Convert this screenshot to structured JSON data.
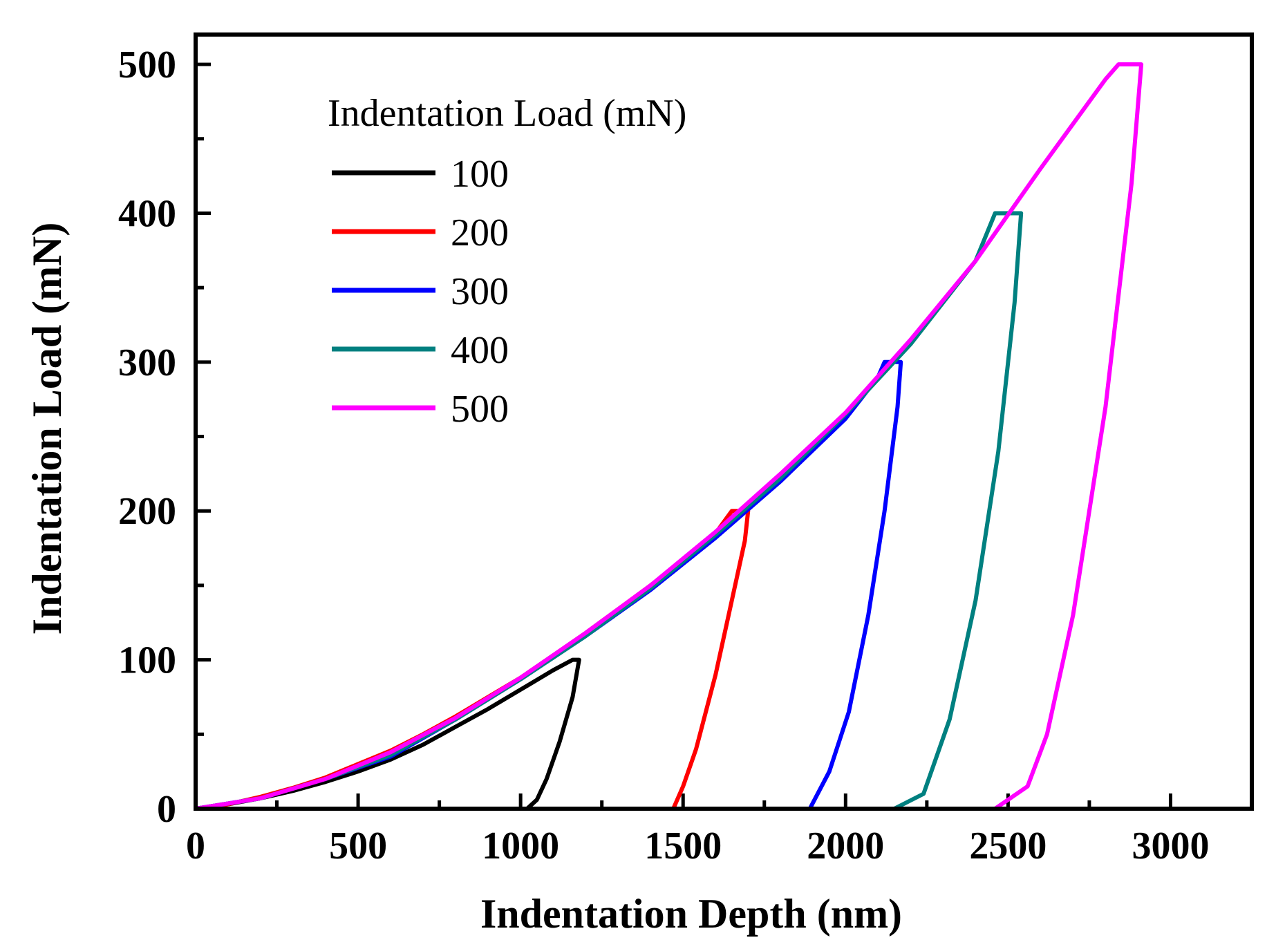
{
  "chart_data": {
    "type": "line",
    "xlabel": "Indentation Depth (nm)",
    "ylabel": "Indentation Load (mN)",
    "xlim": [
      0,
      3250
    ],
    "ylim": [
      0,
      520
    ],
    "xticks": [
      0,
      500,
      1000,
      1500,
      2000,
      2500,
      3000
    ],
    "yticks": [
      0,
      100,
      200,
      300,
      400,
      500
    ],
    "grid": false,
    "legend": {
      "title": "Indentation Load (mN)",
      "placement": "top-left"
    },
    "series": [
      {
        "name": "100",
        "color": "#000000",
        "x": [
          0,
          100,
          200,
          300,
          400,
          500,
          600,
          700,
          800,
          900,
          1000,
          1100,
          1160,
          1180,
          1160,
          1120,
          1080,
          1050,
          1020
        ],
        "y": [
          0,
          3,
          7,
          12,
          18,
          25,
          33,
          43,
          55,
          67,
          80,
          93,
          100,
          100,
          75,
          45,
          20,
          6,
          0
        ]
      },
      {
        "name": "200",
        "color": "#ff0000",
        "x": [
          0,
          100,
          200,
          300,
          400,
          500,
          600,
          700,
          800,
          900,
          1000,
          1100,
          1200,
          1300,
          1400,
          1500,
          1600,
          1650,
          1700,
          1690,
          1650,
          1600,
          1540,
          1500,
          1470
        ],
        "y": [
          0,
          3,
          8,
          14,
          21,
          30,
          39,
          50,
          62,
          75,
          88,
          103,
          118,
          134,
          150,
          167,
          185,
          200,
          200,
          180,
          140,
          90,
          40,
          15,
          0
        ]
      },
      {
        "name": "300",
        "color": "#0000ff",
        "x": [
          0,
          200,
          400,
          600,
          800,
          1000,
          1200,
          1400,
          1600,
          1800,
          2000,
          2100,
          2120,
          2170,
          2160,
          2120,
          2070,
          2010,
          1950,
          1890
        ],
        "y": [
          0,
          7,
          20,
          35,
          60,
          87,
          116,
          147,
          182,
          220,
          262,
          290,
          300,
          300,
          270,
          200,
          130,
          65,
          25,
          0
        ]
      },
      {
        "name": "400",
        "color": "#008080",
        "x": [
          0,
          200,
          400,
          600,
          800,
          1000,
          1200,
          1400,
          1600,
          1800,
          2000,
          2200,
          2400,
          2460,
          2540,
          2520,
          2470,
          2400,
          2320,
          2240,
          2150
        ],
        "y": [
          0,
          7,
          20,
          36,
          60,
          87,
          116,
          148,
          184,
          222,
          265,
          312,
          368,
          400,
          400,
          340,
          240,
          140,
          60,
          10,
          0
        ]
      },
      {
        "name": "500",
        "color": "#ff00ff",
        "x": [
          0,
          200,
          400,
          600,
          800,
          1000,
          1200,
          1400,
          1600,
          1800,
          2000,
          2200,
          2400,
          2600,
          2800,
          2840,
          2910,
          2880,
          2800,
          2700,
          2620,
          2560,
          2460
        ],
        "y": [
          0,
          7,
          20,
          38,
          61,
          88,
          118,
          150,
          186,
          225,
          266,
          315,
          368,
          430,
          490,
          500,
          500,
          420,
          270,
          130,
          50,
          15,
          0
        ]
      }
    ]
  }
}
